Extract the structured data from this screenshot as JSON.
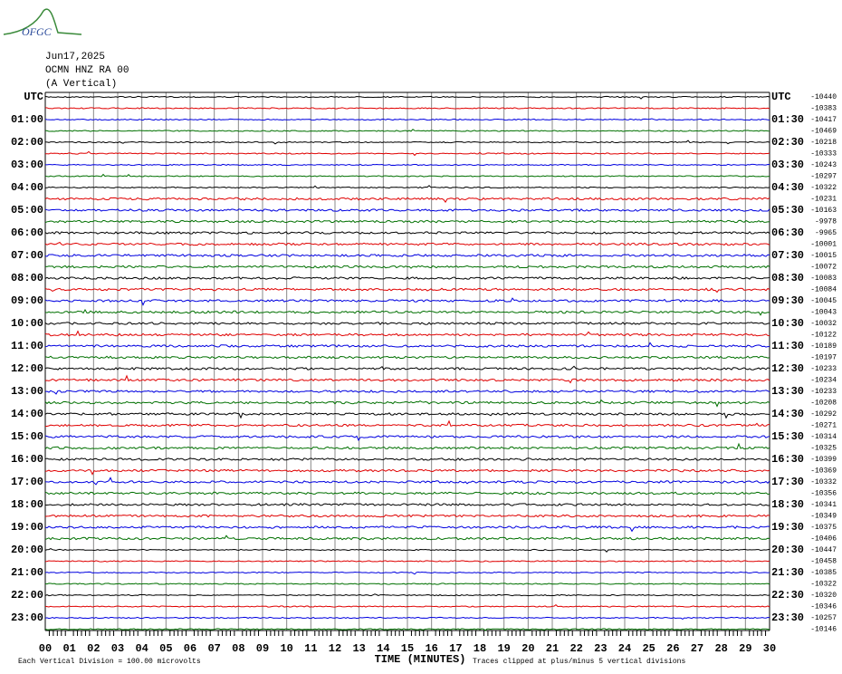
{
  "header": {
    "logo": "OFGC",
    "lines": [
      "Jun17,2025",
      "OCMN HNZ RA 00",
      "(A Vertical)"
    ]
  },
  "left_labels": [
    "UTC",
    "01:00",
    "02:00",
    "03:00",
    "04:00",
    "05:00",
    "06:00",
    "07:00",
    "08:00",
    "09:00",
    "10:00",
    "11:00",
    "12:00",
    "13:00",
    "14:00",
    "15:00",
    "16:00",
    "17:00",
    "18:00",
    "19:00",
    "20:00",
    "21:00",
    "22:00",
    "23:00"
  ],
  "right_labels": [
    "UTC",
    "01:30",
    "02:30",
    "03:30",
    "04:30",
    "05:30",
    "06:30",
    "07:30",
    "08:30",
    "09:30",
    "10:30",
    "11:30",
    "12:30",
    "13:30",
    "14:30",
    "15:30",
    "16:30",
    "17:30",
    "18:30",
    "19:30",
    "20:30",
    "21:30",
    "22:30",
    "23:30"
  ],
  "right_values": [
    -10440,
    -10383,
    -10417,
    -10469,
    -10218,
    -10333,
    -10243,
    -10297,
    -10322,
    -10231,
    -10163,
    -9978,
    -9965,
    -10001,
    -10015,
    -10072,
    -10083,
    -10084,
    -10045,
    -10043,
    -10032,
    -10122,
    -10189,
    -10197,
    -10233,
    -10234,
    -10233,
    -10208,
    -10292,
    -10271,
    -10314,
    -10325,
    -10399,
    -10369,
    -10332,
    -10356,
    -10341,
    -10349,
    -10375,
    -10406,
    -10447,
    -10458,
    -10385,
    -10322,
    -10320,
    -10346,
    -10257,
    -10146
  ],
  "x_labels": [
    "00",
    "01",
    "02",
    "03",
    "04",
    "05",
    "06",
    "07",
    "08",
    "09",
    "10",
    "11",
    "12",
    "13",
    "14",
    "15",
    "16",
    "17",
    "18",
    "19",
    "20",
    "21",
    "22",
    "23",
    "24",
    "25",
    "26",
    "27",
    "28",
    "29",
    "30"
  ],
  "x_title": "TIME (MINUTES)",
  "footer_left": "Each Vertical Division =  100.00 microvolts",
  "footer_right": "Traces clipped at plus/minus 5 vertical divisions",
  "trace_colors": [
    "#000000",
    "#e00000",
    "#0000e0",
    "#007000"
  ]
}
